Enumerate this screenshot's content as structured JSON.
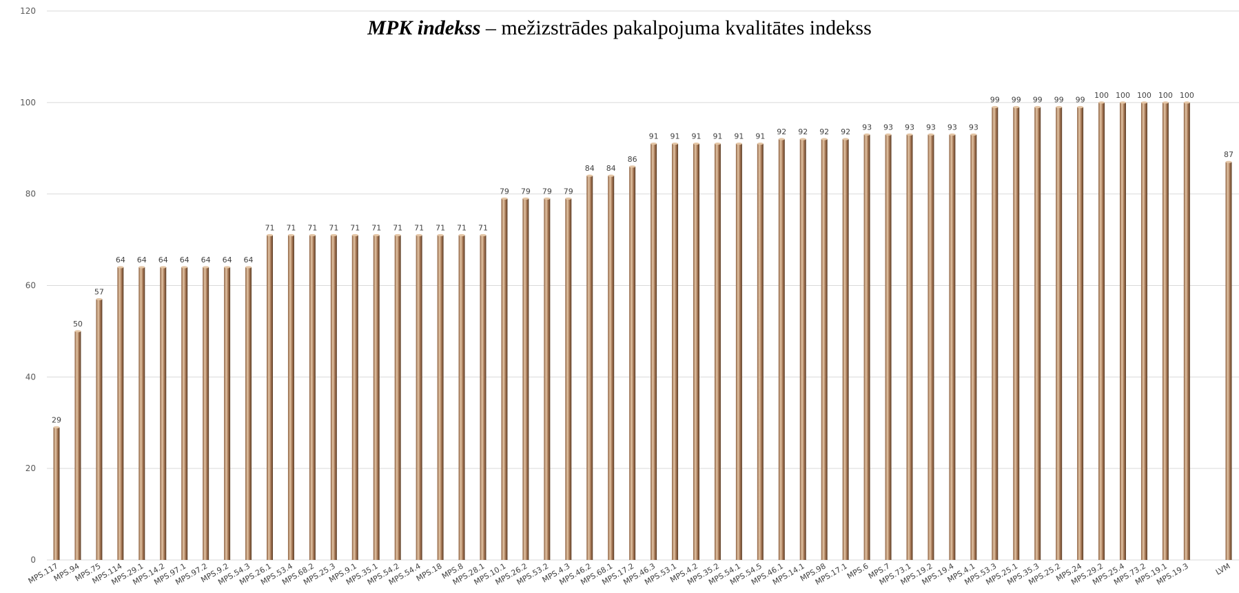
{
  "chart_data": {
    "type": "bar",
    "title_bold": "MPK indekss",
    "title_rest": " – mežizstrādes pakalpojuma kvalitātes indekss",
    "ylim": [
      0,
      120
    ],
    "yticks": [
      0,
      20,
      40,
      60,
      80,
      100,
      120
    ],
    "grid": true,
    "categories": [
      "MPS.117",
      "MPS.94",
      "MPS.75",
      "MPS.114",
      "MPS.29.1",
      "MPS.14.2",
      "MPS.97.1",
      "MPS.97.2",
      "MPS.9.2",
      "MPS.54.3",
      "MPS.26.1",
      "MPS.53.4",
      "MPS.68.2",
      "MPS.25.3",
      "MPS.9.1",
      "MPS.35.1",
      "MPS.54.2",
      "MPS.54.4",
      "MPS.18",
      "MPS.8",
      "MPS.28.1",
      "MPS.10.1",
      "MPS.26.2",
      "MPS.53.2",
      "MPS.4.3",
      "MPS.46.2",
      "MPS.68.1",
      "MPS.17.2",
      "MPS.46.3",
      "MPS.53.1",
      "MPS.4.2",
      "MPS.35.2",
      "MPS.54.1",
      "MPS.54.5",
      "MPS.46.1",
      "MPS.14.1",
      "MPS.98",
      "MPS.17.1",
      "MPS.6",
      "MPS.7",
      "MPS.73.1",
      "MPS.19.2",
      "MPS.19.4",
      "MPS.4.1",
      "MPS.53.3",
      "MPS.25.1",
      "MPS.35.3",
      "MPS.25.2",
      "MPS.24",
      "MPS.29.2",
      "MPS.25.4",
      "MPS.73.2",
      "MPS.19.1",
      "MPS.19.3",
      "LVM"
    ],
    "values": [
      29,
      50,
      57,
      64,
      64,
      64,
      64,
      64,
      64,
      64,
      71,
      71,
      71,
      71,
      71,
      71,
      71,
      71,
      71,
      71,
      71,
      79,
      79,
      79,
      79,
      84,
      84,
      86,
      91,
      91,
      91,
      91,
      91,
      91,
      92,
      92,
      92,
      92,
      93,
      93,
      93,
      93,
      93,
      93,
      99,
      99,
      99,
      99,
      99,
      100,
      100,
      100,
      100,
      100,
      87
    ],
    "value_labels": [
      "29",
      "50",
      "57",
      "64",
      "64",
      "64",
      "64",
      "64",
      "64",
      "64",
      "71",
      "71",
      "71",
      "71",
      "71",
      "71",
      "71",
      "71",
      "71",
      "71",
      "71",
      "79",
      "79",
      "79",
      "79",
      "84",
      "84",
      "86",
      "91",
      "91",
      "91",
      "91",
      "91",
      "91",
      "92",
      "92",
      "92",
      "92",
      "93",
      "93",
      "93",
      "93",
      "93",
      "93",
      "99",
      "99",
      "99",
      "99",
      "99",
      "100",
      "100",
      "100",
      "100",
      "100",
      "87"
    ],
    "gap_before_last": true,
    "bar_color": "#a0714f",
    "bar_highlight": "#e4c6a6",
    "bar_shadow": "#5a3d26"
  }
}
